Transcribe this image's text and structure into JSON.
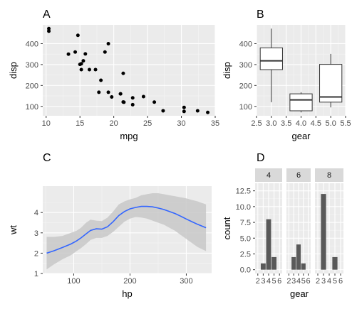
{
  "colors": {
    "panel_bg": "#ebebeb",
    "grid_major": "#ffffff",
    "grid_minor": "#f5f5f5",
    "strip_bg": "#d9d9d9",
    "point": "#000000",
    "box_fill": "#ffffff",
    "box_line": "#333333",
    "smooth_line": "#3366ff",
    "ribbon": "#c8c8c8",
    "bar": "#595959"
  },
  "chart_data": [
    {
      "tag": "A",
      "type": "scatter",
      "xlabel": "mpg",
      "ylabel": "disp",
      "xlim": [
        9.5,
        35
      ],
      "ylim": [
        55,
        490
      ],
      "x_ticks": [
        10,
        15,
        20,
        25,
        30,
        35
      ],
      "y_ticks": [
        100,
        200,
        300,
        400
      ],
      "points": [
        [
          21.0,
          160
        ],
        [
          21.0,
          160
        ],
        [
          22.8,
          108
        ],
        [
          21.4,
          258
        ],
        [
          18.7,
          360
        ],
        [
          18.1,
          225
        ],
        [
          14.3,
          360
        ],
        [
          24.4,
          146.7
        ],
        [
          22.8,
          140.8
        ],
        [
          19.2,
          167.6
        ],
        [
          17.8,
          167.6
        ],
        [
          16.4,
          275.8
        ],
        [
          17.3,
          275.8
        ],
        [
          15.2,
          275.8
        ],
        [
          10.4,
          472
        ],
        [
          10.4,
          460
        ],
        [
          14.7,
          440
        ],
        [
          32.4,
          78.7
        ],
        [
          30.4,
          75.7
        ],
        [
          33.9,
          71.1
        ],
        [
          21.5,
          120.1
        ],
        [
          15.5,
          318
        ],
        [
          15.2,
          304
        ],
        [
          13.3,
          350
        ],
        [
          19.2,
          400
        ],
        [
          27.3,
          79
        ],
        [
          26.0,
          120.3
        ],
        [
          30.4,
          95.1
        ],
        [
          15.8,
          351
        ],
        [
          19.7,
          145
        ],
        [
          15.0,
          301
        ],
        [
          21.4,
          121
        ]
      ]
    },
    {
      "tag": "B",
      "type": "box",
      "xlabel": "gear",
      "ylabel": "disp",
      "xlim": [
        2.5,
        5.5
      ],
      "ylim": [
        55,
        490
      ],
      "x_ticks": [
        "2.5",
        "3.0",
        "3.5",
        "4.0",
        "4.5",
        "5.0",
        "5.5"
      ],
      "y_ticks": [
        100,
        200,
        300,
        400
      ],
      "boxes": [
        {
          "x": 3,
          "min": 120.1,
          "q1": 275.8,
          "median": 318,
          "q3": 380,
          "max": 472
        },
        {
          "x": 4,
          "min": 71.1,
          "q1": 78.8,
          "median": 130.9,
          "q3": 160,
          "max": 167.6
        },
        {
          "x": 5,
          "min": 95.1,
          "q1": 120.3,
          "median": 145,
          "q3": 301,
          "max": 351
        }
      ]
    },
    {
      "tag": "C",
      "type": "line",
      "xlabel": "hp",
      "ylabel": "wt",
      "xlim": [
        45,
        345
      ],
      "ylim": [
        1,
        5.3
      ],
      "x_ticks": [
        100,
        200,
        300
      ],
      "y_ticks": [
        1,
        2,
        3,
        4
      ],
      "x": [
        52,
        65,
        80,
        95,
        105,
        113,
        122,
        130,
        140,
        150,
        160,
        170,
        180,
        190,
        200,
        210,
        220,
        230,
        240,
        250,
        260,
        270,
        280,
        290,
        300,
        310,
        320,
        335
      ],
      "y": [
        2.0,
        2.12,
        2.28,
        2.45,
        2.6,
        2.75,
        2.95,
        3.12,
        3.2,
        3.18,
        3.3,
        3.55,
        3.85,
        4.05,
        4.18,
        4.25,
        4.3,
        4.3,
        4.28,
        4.22,
        4.15,
        4.05,
        3.95,
        3.82,
        3.68,
        3.55,
        3.42,
        3.25
      ],
      "lower": [
        1.2,
        1.45,
        1.7,
        1.9,
        2.1,
        2.25,
        2.45,
        2.65,
        2.75,
        2.75,
        2.85,
        3.05,
        3.3,
        3.55,
        3.7,
        3.78,
        3.75,
        3.7,
        3.6,
        3.5,
        3.4,
        3.25,
        3.1,
        2.9,
        2.7,
        2.5,
        2.3,
        2.1
      ],
      "upper": [
        2.8,
        2.8,
        2.85,
        3.0,
        3.1,
        3.25,
        3.5,
        3.65,
        3.6,
        3.58,
        3.75,
        4.05,
        4.4,
        4.55,
        4.65,
        4.72,
        4.85,
        4.9,
        4.95,
        4.95,
        4.9,
        4.85,
        4.8,
        4.75,
        4.7,
        4.62,
        4.55,
        4.4
      ]
    },
    {
      "tag": "D",
      "type": "bar",
      "xlabel": "gear",
      "ylabel": "count",
      "ylim": [
        -0.6,
        13.7
      ],
      "y_ticks": [
        "0.0",
        "2.5",
        "5.0",
        "7.5",
        "10.0",
        "12.5"
      ],
      "x_range": [
        1.5,
        6.5
      ],
      "x_ticks": [
        2,
        3,
        4,
        5,
        6
      ],
      "facets": [
        {
          "label": "4",
          "bars": [
            [
              3,
              1
            ],
            [
              4,
              8
            ],
            [
              5,
              2
            ]
          ]
        },
        {
          "label": "6",
          "bars": [
            [
              3,
              2
            ],
            [
              4,
              4
            ],
            [
              5,
              1
            ]
          ]
        },
        {
          "label": "8",
          "bars": [
            [
              3,
              12
            ],
            [
              5,
              2
            ]
          ]
        }
      ]
    }
  ]
}
